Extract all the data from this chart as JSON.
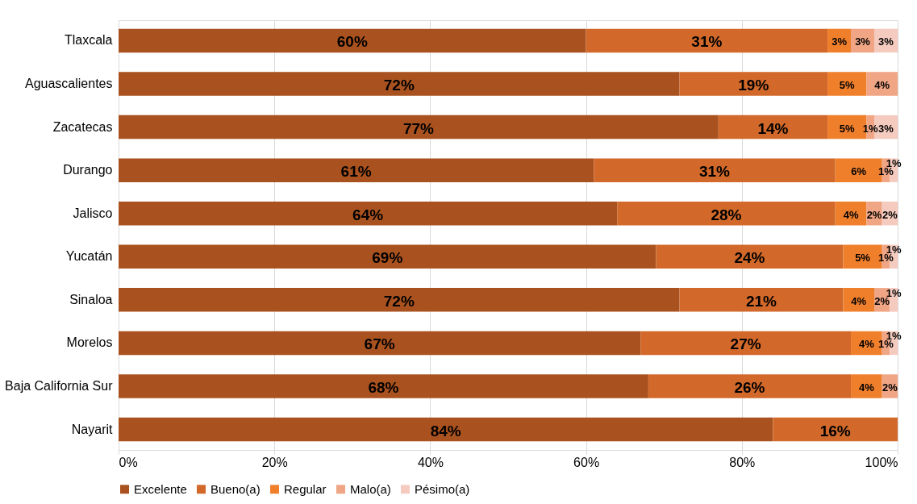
{
  "chart_data": {
    "type": "bar",
    "orientation": "horizontal",
    "stacked": true,
    "categories": [
      "Tlaxcala",
      "Aguascalientes",
      "Zacatecas",
      "Durango",
      "Jalisco",
      "Yucatán",
      "Sinaloa",
      "Morelos",
      "Baja California Sur",
      "Nayarit"
    ],
    "series": [
      {
        "name": "Excelente",
        "color": "#a9521f",
        "values": [
          60,
          72,
          77,
          61,
          64,
          69,
          72,
          67,
          68,
          84
        ],
        "value_labels": [
          "60%",
          "72%",
          "77%",
          "61%",
          "64%",
          "69%",
          "72%",
          "67%",
          "68%",
          "84%"
        ]
      },
      {
        "name": "Bueno(a)",
        "color": "#d2692a",
        "values": [
          31,
          19,
          14,
          31,
          28,
          24,
          21,
          27,
          26,
          16
        ],
        "value_labels": [
          "31%",
          "19%",
          "14%",
          "31%",
          "28%",
          "24%",
          "21%",
          "27%",
          "26%",
          "16%"
        ]
      },
      {
        "name": "Regular",
        "color": "#f07f2c",
        "values": [
          3,
          5,
          5,
          6,
          4,
          5,
          4,
          4,
          4,
          0
        ],
        "value_labels": [
          "3%",
          "5%",
          "5%",
          "6%",
          "4%",
          "5%",
          "4%",
          "4%",
          "4%",
          null
        ]
      },
      {
        "name": "Malo(a)",
        "color": "#f0a585",
        "values": [
          3,
          4,
          1,
          1,
          2,
          1,
          2,
          1,
          2,
          0
        ],
        "value_labels": [
          "3%",
          "4%",
          "1%",
          "1%",
          "2%",
          "1%",
          "2%",
          "1%",
          "2%",
          null
        ]
      },
      {
        "name": "Pésimo(a)",
        "color": "#f5cbbf",
        "values": [
          3,
          0,
          3,
          1,
          2,
          1,
          1,
          1,
          0,
          0
        ],
        "value_labels": [
          "3%",
          null,
          "3%",
          "1%",
          "2%",
          "1%",
          "1%",
          "1%",
          null,
          null
        ]
      }
    ],
    "xlim": [
      0,
      100
    ],
    "xticks": [
      {
        "value": 0,
        "label": "0%"
      },
      {
        "value": 20,
        "label": "20%"
      },
      {
        "value": 40,
        "label": "40%"
      },
      {
        "value": 60,
        "label": "60%"
      },
      {
        "value": 80,
        "label": "80%"
      },
      {
        "value": 100,
        "label": "100%"
      }
    ],
    "grid": "x",
    "legend": "bottom"
  }
}
